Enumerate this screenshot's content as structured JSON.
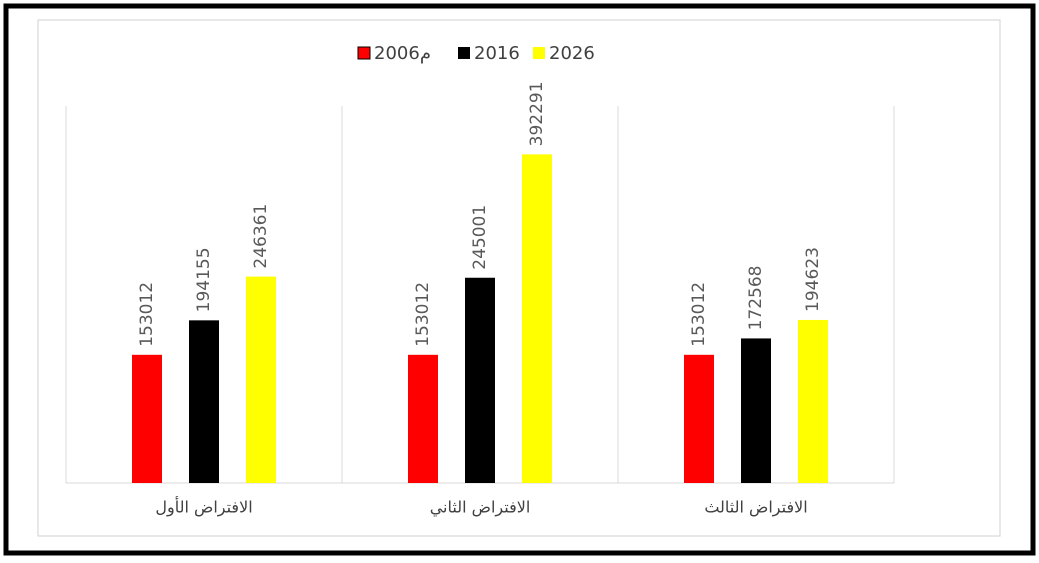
{
  "chart_data": {
    "type": "bar",
    "categories": [
      "الافتراض الأول",
      "الافتراض الثاني",
      "الافتراض الثالث"
    ],
    "series": [
      {
        "name": "2006م",
        "color": "#ff0000",
        "values": [
          153012,
          153012,
          153012
        ]
      },
      {
        "name": "2016",
        "color": "#000000",
        "values": [
          194155,
          245001,
          172568
        ]
      },
      {
        "name": "2026",
        "color": "#ffff00",
        "values": [
          246361,
          392291,
          194623
        ]
      }
    ],
    "ylim": [
      0,
      450000
    ],
    "grid": true,
    "legend": "top"
  }
}
